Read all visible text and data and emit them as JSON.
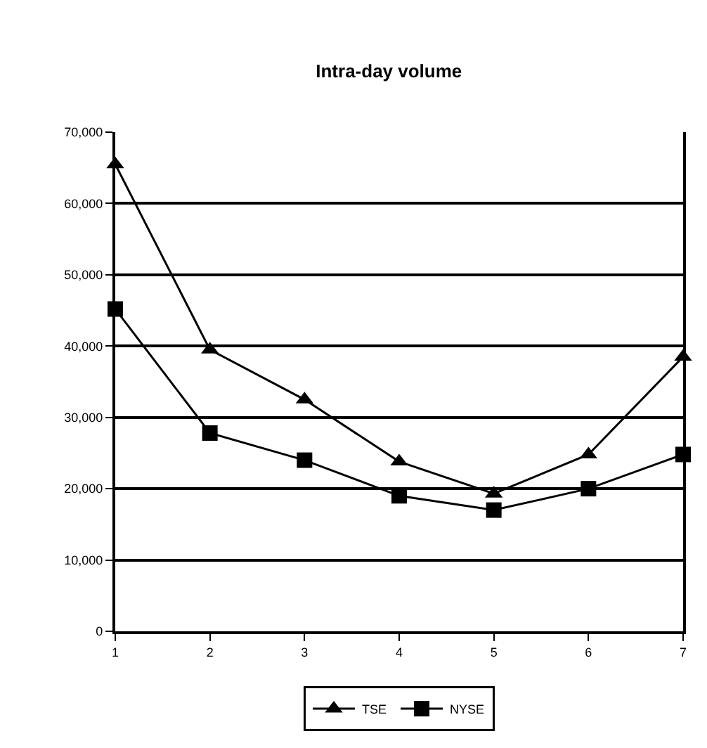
{
  "chart_data": {
    "type": "line",
    "title": "Intra-day volume",
    "x": [
      1,
      2,
      3,
      4,
      5,
      6,
      7
    ],
    "series": [
      {
        "name": "TSE",
        "color": "#000000",
        "marker": "triangle",
        "values": [
          65500,
          39500,
          32500,
          23800,
          19300,
          24800,
          38500
        ]
      },
      {
        "name": "NYSE",
        "color": "#000000",
        "marker": "square",
        "values": [
          45200,
          27800,
          24000,
          19000,
          17000,
          20000,
          24800
        ]
      }
    ],
    "xlim": [
      1,
      7
    ],
    "xticks": [
      1,
      2,
      3,
      4,
      5,
      6,
      7
    ],
    "ylim": [
      0,
      70000
    ],
    "yticks": [
      {
        "value": 0,
        "label": "0"
      },
      {
        "value": 10000,
        "label": "10,000"
      },
      {
        "value": 20000,
        "label": "20,000"
      },
      {
        "value": 30000,
        "label": "30,000"
      },
      {
        "value": 40000,
        "label": "40,000"
      },
      {
        "value": 50000,
        "label": "50,000"
      },
      {
        "value": 60000,
        "label": "60,000"
      },
      {
        "value": 70000,
        "label": "70,000"
      }
    ],
    "grid": "y",
    "legend": "bottom",
    "line_style": "solid"
  }
}
